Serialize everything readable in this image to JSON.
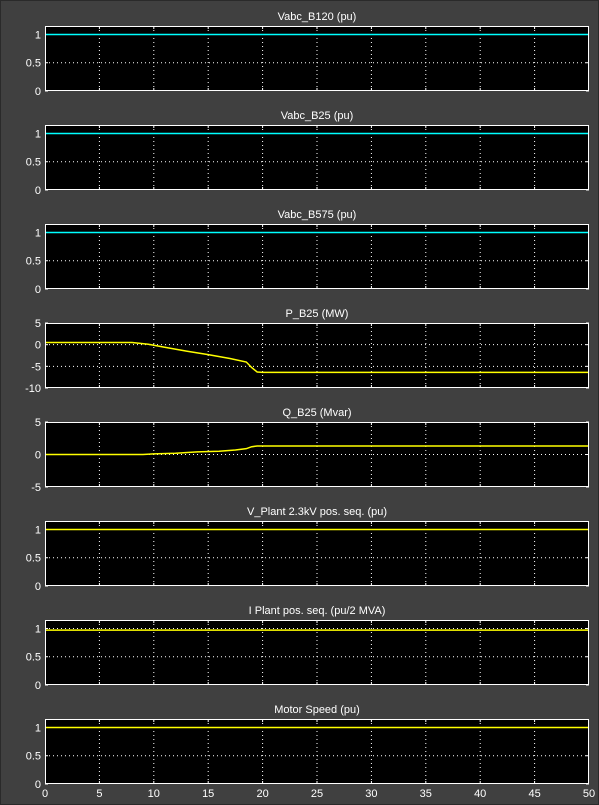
{
  "colors": {
    "background": "#404040",
    "axes_background": "#000000",
    "axes_border": "#ffffff",
    "grid": "#ffffff",
    "text": "#ffffff"
  },
  "chart_data": [
    {
      "type": "line",
      "title": "Vabc_B120 (pu)",
      "xlim": [
        0,
        50
      ],
      "ylim": [
        0,
        1.15
      ],
      "yticks": [
        "0",
        "0.5",
        "1"
      ],
      "ytick_values": [
        0,
        0.5,
        1
      ],
      "grid": true,
      "series": [
        {
          "color": "#00ffff",
          "x": [
            0,
            50
          ],
          "y": [
            1.0,
            1.0
          ]
        }
      ]
    },
    {
      "type": "line",
      "title": "Vabc_B25 (pu)",
      "xlim": [
        0,
        50
      ],
      "ylim": [
        0,
        1.15
      ],
      "yticks": [
        "0",
        "0.5",
        "1"
      ],
      "ytick_values": [
        0,
        0.5,
        1
      ],
      "grid": true,
      "series": [
        {
          "color": "#00ffff",
          "x": [
            0,
            50
          ],
          "y": [
            1.0,
            1.0
          ]
        }
      ]
    },
    {
      "type": "line",
      "title": "Vabc_B575 (pu)",
      "xlim": [
        0,
        50
      ],
      "ylim": [
        0,
        1.15
      ],
      "yticks": [
        "0",
        "0.5",
        "1"
      ],
      "ytick_values": [
        0,
        0.5,
        1
      ],
      "grid": true,
      "series": [
        {
          "color": "#00ffff",
          "x": [
            0,
            50
          ],
          "y": [
            1.0,
            1.0
          ]
        }
      ]
    },
    {
      "type": "line",
      "title": "P_B25 (MW)",
      "xlim": [
        0,
        50
      ],
      "ylim": [
        -10,
        5
      ],
      "yticks": [
        "-10",
        "-5",
        "0",
        "5"
      ],
      "ytick_values": [
        -10,
        -5,
        0,
        5
      ],
      "grid": true,
      "series": [
        {
          "color": "#ffff00",
          "x": [
            0,
            8,
            9.5,
            11,
            13,
            15,
            17,
            18.5,
            19,
            19.5,
            20,
            25,
            30,
            35,
            40,
            45,
            50
          ],
          "y": [
            0.5,
            0.5,
            0.1,
            -0.6,
            -1.5,
            -2.3,
            -3.2,
            -4.0,
            -5.3,
            -6.3,
            -6.4,
            -6.4,
            -6.4,
            -6.4,
            -6.4,
            -6.4,
            -6.4
          ]
        }
      ]
    },
    {
      "type": "line",
      "title": "Q_B25 (Mvar)",
      "xlim": [
        0,
        50
      ],
      "ylim": [
        -5,
        5
      ],
      "yticks": [
        "-5",
        "0",
        "5"
      ],
      "ytick_values": [
        -5,
        0,
        5
      ],
      "grid": true,
      "series": [
        {
          "color": "#ffff00",
          "x": [
            0,
            9,
            10,
            12,
            14,
            16,
            17.5,
            18.5,
            19,
            19.5,
            20,
            25,
            30,
            35,
            40,
            45,
            50
          ],
          "y": [
            0,
            0,
            0.1,
            0.2,
            0.4,
            0.5,
            0.7,
            0.9,
            1.2,
            1.3,
            1.3,
            1.3,
            1.3,
            1.3,
            1.3,
            1.3,
            1.3
          ]
        }
      ]
    },
    {
      "type": "line",
      "title": "V_Plant 2.3kV pos. seq. (pu)",
      "xlim": [
        0,
        50
      ],
      "ylim": [
        0,
        1.15
      ],
      "yticks": [
        "0",
        "0.5",
        "1"
      ],
      "ytick_values": [
        0,
        0.5,
        1
      ],
      "grid": true,
      "series": [
        {
          "color": "#ffff00",
          "x": [
            0,
            50
          ],
          "y": [
            1.0,
            1.0
          ]
        }
      ]
    },
    {
      "type": "line",
      "title": "I Plant pos. seq. (pu/2 MVA)",
      "xlim": [
        0,
        50
      ],
      "ylim": [
        0,
        1.15
      ],
      "yticks": [
        "0",
        "0.5",
        "1"
      ],
      "ytick_values": [
        0,
        0.5,
        1
      ],
      "grid": true,
      "series": [
        {
          "color": "#ffff00",
          "x": [
            0,
            50
          ],
          "y": [
            0.97,
            0.97
          ]
        }
      ]
    },
    {
      "type": "line",
      "title": "Motor Speed (pu)",
      "xlim": [
        0,
        50
      ],
      "ylim": [
        0,
        1.15
      ],
      "yticks": [
        "0",
        "0.5",
        "1"
      ],
      "ytick_values": [
        0,
        0.5,
        1
      ],
      "grid": true,
      "xticks": [
        "0",
        "5",
        "10",
        "15",
        "20",
        "25",
        "30",
        "35",
        "40",
        "45",
        "50"
      ],
      "xtick_values": [
        0,
        5,
        10,
        15,
        20,
        25,
        30,
        35,
        40,
        45,
        50
      ],
      "series": [
        {
          "color": "#ffff00",
          "x": [
            0,
            50
          ],
          "y": [
            1.0,
            1.0
          ]
        }
      ]
    }
  ]
}
